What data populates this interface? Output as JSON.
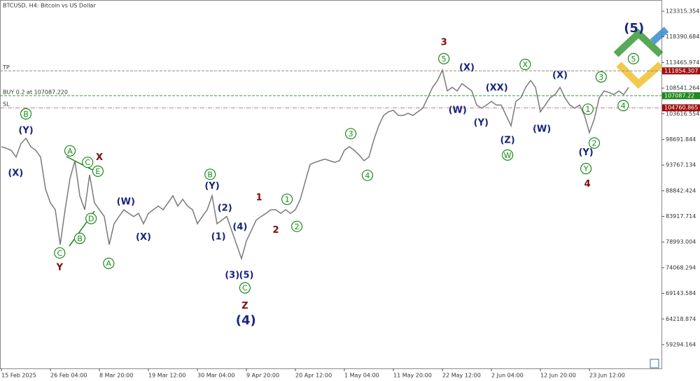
{
  "chart_data": {
    "type": "line",
    "title": "BTCUSD, H4:  Bitcoin vs US Dollar",
    "color": "#7a7a7a",
    "ylim": [
      54732,
      125462
    ],
    "yticks": [
      123315.354,
      118390.684,
      113465.974,
      108541.264,
      103616.554,
      98691.844,
      93767.134,
      88842.424,
      83917.714,
      78993.004,
      74068.294,
      69143.584,
      64218.874,
      59294.164
    ],
    "x_labels": [
      "15 Feb 2025",
      "26 Feb 04:00",
      "8 Mar 20:00",
      "19 Mar 12:00",
      "30 Mar 04:00",
      "9 Apr 20:00",
      "20 Apr 12:00",
      "1 May 04:00",
      "11 May 20:00",
      "22 May 12:00",
      "2 Jun 04:00",
      "12 Jun 20:00",
      "23 Jun 12:00"
    ],
    "x_label_every": 10,
    "values": [
      97300,
      97000,
      96600,
      95300,
      97900,
      98900,
      97300,
      96600,
      95300,
      89200,
      86500,
      85200,
      78500,
      85200,
      91200,
      94600,
      87900,
      85200,
      91900,
      86500,
      85200,
      83900,
      78500,
      82500,
      83900,
      85200,
      84500,
      83900,
      84500,
      82500,
      84500,
      85200,
      85900,
      85200,
      86500,
      87900,
      85900,
      87200,
      85900,
      85200,
      82500,
      83900,
      85200,
      87900,
      82500,
      83200,
      83900,
      81200,
      78500,
      75800,
      79200,
      81200,
      83200,
      83900,
      84500,
      85200,
      85200,
      84500,
      85200,
      84500,
      85200,
      87200,
      90600,
      93900,
      94300,
      94600,
      94900,
      94600,
      94300,
      94600,
      96600,
      97300,
      96600,
      95700,
      94600,
      95300,
      98600,
      101300,
      103300,
      104000,
      104300,
      103300,
      103300,
      103700,
      103300,
      104000,
      104700,
      106700,
      108700,
      110000,
      112000,
      108000,
      108700,
      108000,
      109400,
      108700,
      108000,
      105300,
      104700,
      105300,
      106000,
      105300,
      105300,
      103300,
      101300,
      106000,
      106700,
      108700,
      110000,
      108700,
      104000,
      105300,
      106700,
      107300,
      108700,
      106700,
      105300,
      104700,
      105300,
      103300,
      100000,
      102600,
      106700,
      108000,
      107700,
      107300,
      108000,
      107300,
      108700
    ],
    "levels": [
      {
        "name": "TP",
        "value": 111854.307,
        "color": "#a08a7a",
        "box_color": "#a01010"
      },
      {
        "name": "BUY 0.2 at 107087.220",
        "value": 107087.22,
        "color": "#3c9a3c",
        "box_color": "#1f8a1f"
      },
      {
        "name": "SL",
        "value": 104760.865,
        "color": "#d07090",
        "box_color": "#a01010"
      }
    ],
    "annotations": [
      {
        "text": "B",
        "at": 5,
        "price": 103600,
        "color": "#1a8a1a",
        "circled": true
      },
      {
        "text": "(Y)",
        "at": 5,
        "price": 100500,
        "color": "#1a237e"
      },
      {
        "text": "(X)",
        "at": 2.9,
        "price": 92300,
        "color": "#1a237e"
      },
      {
        "text": "A",
        "at": 14,
        "price": 96500,
        "color": "#1a8a1a",
        "circled": true
      },
      {
        "text": "C",
        "at": 17.6,
        "price": 94300,
        "color": "#1a8a1a",
        "circled": true
      },
      {
        "text": "E",
        "at": 19.7,
        "price": 92600,
        "color": "#1a8a1a",
        "circled": true
      },
      {
        "text": "X",
        "at": 20,
        "price": 95300,
        "color": "#7a0a0a"
      },
      {
        "text": "D",
        "at": 18.3,
        "price": 83500,
        "color": "#1a8a1a",
        "circled": true
      },
      {
        "text": "B",
        "at": 16,
        "price": 79700,
        "color": "#1a8a1a",
        "circled": true
      },
      {
        "text": "C",
        "at": 11.9,
        "price": 76900,
        "color": "#1a8a1a",
        "circled": true
      },
      {
        "text": "Y",
        "at": 11.9,
        "price": 74200,
        "color": "#7a0a0a"
      },
      {
        "text": "A",
        "at": 21.9,
        "price": 74900,
        "color": "#1a8a1a",
        "circled": true
      },
      {
        "text": "(W)",
        "at": 25.4,
        "price": 86800,
        "color": "#1a237e"
      },
      {
        "text": "(X)",
        "at": 29,
        "price": 80000,
        "color": "#1a237e"
      },
      {
        "text": "B",
        "at": 42.6,
        "price": 92000,
        "color": "#1a8a1a",
        "circled": true
      },
      {
        "text": "(Y)",
        "at": 43,
        "price": 89800,
        "color": "#1a237e"
      },
      {
        "text": "(2)",
        "at": 45.6,
        "price": 85600,
        "color": "#1a237e"
      },
      {
        "text": "(1)",
        "at": 44.3,
        "price": 80100,
        "color": "#1a237e"
      },
      {
        "text": "(4)",
        "at": 48.7,
        "price": 82000,
        "color": "#1a237e"
      },
      {
        "text": "(3)",
        "at": 47.1,
        "price": 72700,
        "color": "#1a237e"
      },
      {
        "text": "(5)",
        "at": 50,
        "price": 72700,
        "color": "#1a237e"
      },
      {
        "text": "C",
        "at": 49.7,
        "price": 70200,
        "color": "#1a8a1a",
        "circled": true
      },
      {
        "text": "Z",
        "at": 49.7,
        "price": 66800,
        "color": "#7a0a0a"
      },
      {
        "text": "(4)",
        "at": 49.9,
        "price": 64000,
        "color": "#1a237e",
        "large": true
      },
      {
        "text": "1",
        "at": 52.6,
        "price": 87600,
        "color": "#7a0a0a"
      },
      {
        "text": "2",
        "at": 56,
        "price": 81400,
        "color": "#7a0a0a"
      },
      {
        "text": "1",
        "at": 58.3,
        "price": 87200,
        "color": "#1a8a1a",
        "circled": true
      },
      {
        "text": "2",
        "at": 60.3,
        "price": 82000,
        "color": "#1a8a1a",
        "circled": true
      },
      {
        "text": "3",
        "at": 71.3,
        "price": 99800,
        "color": "#1a8a1a",
        "circled": true
      },
      {
        "text": "4",
        "at": 74.7,
        "price": 91800,
        "color": "#1a8a1a",
        "circled": true
      },
      {
        "text": "3",
        "at": 90.3,
        "price": 117400,
        "color": "#7a0a0a"
      },
      {
        "text": "5",
        "at": 90.3,
        "price": 114200,
        "color": "#1a8a1a",
        "circled": true
      },
      {
        "text": "(X)",
        "at": 95,
        "price": 112600,
        "color": "#1a237e"
      },
      {
        "text": "(W)",
        "at": 93.1,
        "price": 104400,
        "color": "#1a237e"
      },
      {
        "text": "(XX)",
        "at": 101.1,
        "price": 108700,
        "color": "#1a237e"
      },
      {
        "text": "(Y)",
        "at": 97.9,
        "price": 102000,
        "color": "#1a237e"
      },
      {
        "text": "X",
        "at": 106.9,
        "price": 113100,
        "color": "#1a8a1a",
        "circled": true
      },
      {
        "text": "(Z)",
        "at": 103.3,
        "price": 98600,
        "color": "#1a237e"
      },
      {
        "text": "W",
        "at": 103.3,
        "price": 95700,
        "color": "#1a8a1a",
        "circled": true
      },
      {
        "text": "(X)",
        "at": 114,
        "price": 111100,
        "color": "#1a237e"
      },
      {
        "text": "(W)",
        "at": 110.3,
        "price": 100800,
        "color": "#1a237e"
      },
      {
        "text": "3",
        "at": 122.4,
        "price": 110700,
        "color": "#1a8a1a",
        "circled": true
      },
      {
        "text": "1",
        "at": 119.7,
        "price": 104500,
        "color": "#1a8a1a",
        "circled": true
      },
      {
        "text": "4",
        "at": 126.9,
        "price": 105200,
        "color": "#1a8a1a",
        "circled": true
      },
      {
        "text": "2",
        "at": 121,
        "price": 98000,
        "color": "#1a8a1a",
        "circled": true
      },
      {
        "text": "(Y)",
        "at": 119.3,
        "price": 96300,
        "color": "#1a237e"
      },
      {
        "text": "Y",
        "at": 119.3,
        "price": 93100,
        "color": "#1a8a1a",
        "circled": true
      },
      {
        "text": "4",
        "at": 119.6,
        "price": 90200,
        "color": "#7a0a0a"
      },
      {
        "text": "(5)",
        "at": 129.1,
        "price": 120100,
        "color": "#1a237e",
        "large": true
      },
      {
        "text": "5",
        "at": 129,
        "price": 114200,
        "color": "#1a8a1a",
        "circled": true
      }
    ]
  }
}
